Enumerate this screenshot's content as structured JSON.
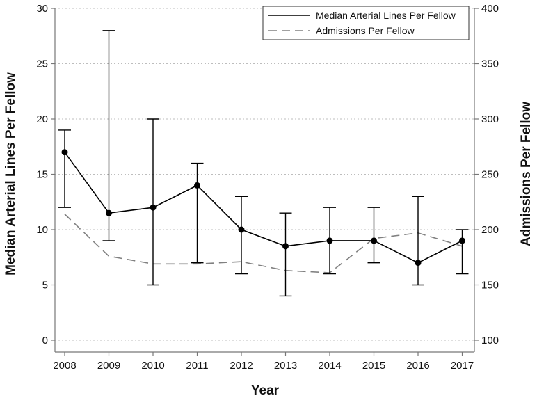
{
  "chart_data": {
    "type": "line",
    "x": [
      2008,
      2009,
      2010,
      2011,
      2012,
      2013,
      2014,
      2015,
      2016,
      2017
    ],
    "x_tick_labels": [
      "2008",
      "2009",
      "2010",
      "2011",
      "2012",
      "2013",
      "2014",
      "2015",
      "2016",
      "2017"
    ],
    "xlabel": "Year",
    "ylabel_left": "Median Arterial Lines Per Fellow",
    "ylabel_right": "Admissions Per Fellow",
    "ylim_left": [
      0,
      30
    ],
    "ylim_right": [
      100,
      400
    ],
    "y_ticks_left": [
      0,
      5,
      10,
      15,
      20,
      25,
      30
    ],
    "y_ticks_right": [
      100,
      150,
      200,
      250,
      300,
      350,
      400
    ],
    "grid": "horizontal dotted",
    "legend_position": "top-right",
    "series": [
      {
        "name": "Median Arterial Lines Per Fellow",
        "axis": "left",
        "style": "solid",
        "color": "#000000",
        "values": [
          17,
          11.5,
          12,
          14,
          10,
          8.5,
          9,
          9,
          7,
          9
        ],
        "error_low": [
          12,
          9,
          5,
          7,
          6,
          4,
          6,
          7,
          5,
          6
        ],
        "error_high": [
          19,
          28,
          20,
          16,
          13,
          11.5,
          12,
          12,
          13,
          10
        ]
      },
      {
        "name": "Admissions Per Fellow",
        "axis": "right",
        "style": "dashed",
        "color": "#808080",
        "values": [
          214,
          176,
          169,
          169,
          171,
          163,
          161,
          192,
          197,
          185
        ]
      }
    ]
  }
}
